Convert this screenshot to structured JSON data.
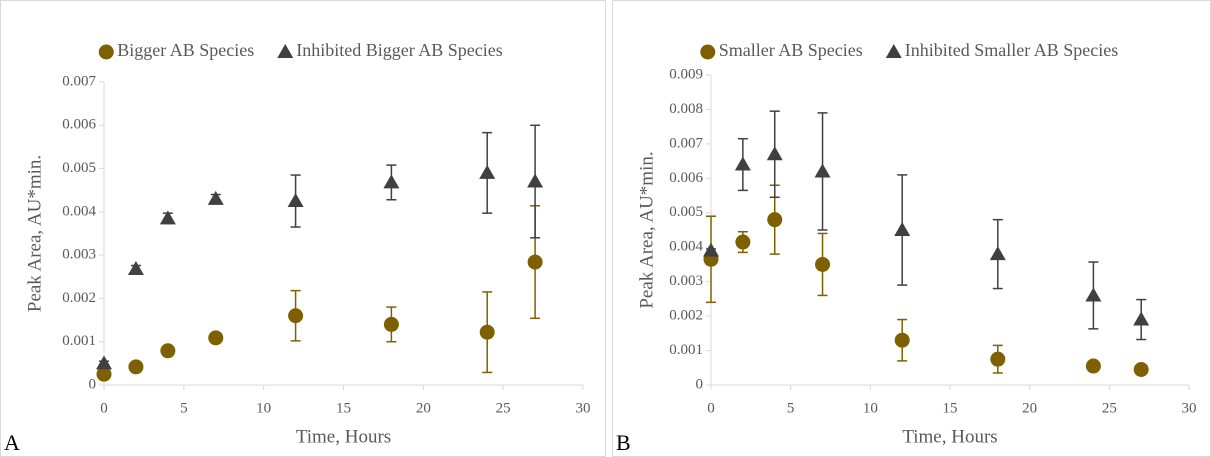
{
  "chart_data": [
    {
      "type": "scatter",
      "panel_label": "A",
      "x_label": "Time, Hours",
      "y_label": "Peak Area, AU*min.",
      "xlim": [
        0,
        30
      ],
      "xticks": [
        0,
        5,
        10,
        15,
        20,
        25,
        30
      ],
      "ylim": [
        0,
        0.007
      ],
      "yticks": [
        0,
        0.001,
        0.002,
        0.003,
        0.004,
        0.005,
        0.006,
        0.007
      ],
      "x": [
        0,
        2,
        4,
        7,
        12,
        18,
        24,
        27
      ],
      "series": [
        {
          "name": "Bigger AB Species",
          "color": "#7f6000",
          "marker": "circle",
          "values": [
            0.00025,
            0.00042,
            0.00079,
            0.00109,
            0.0016,
            0.0014,
            0.00122,
            0.00284
          ],
          "errors": [
            3e-05,
            3e-05,
            0.0001,
            4e-05,
            0.00058,
            0.0004,
            0.00093,
            0.0013
          ]
        },
        {
          "name": "Inhibited Bigger AB Species",
          "color": "#404040",
          "marker": "triangle",
          "values": [
            0.0005,
            0.00268,
            0.00385,
            0.0043,
            0.00425,
            0.00468,
            0.0049,
            0.0047
          ],
          "errors": [
            5e-05,
            8e-05,
            0.00012,
            0.0001,
            0.0006,
            0.0004,
            0.00093,
            0.0013
          ]
        }
      ]
    },
    {
      "type": "scatter",
      "panel_label": "B",
      "x_label": "Time, Hours",
      "y_label": "Peak Area, AU*min.",
      "xlim": [
        0,
        30
      ],
      "xticks": [
        0,
        5,
        10,
        15,
        20,
        25,
        30
      ],
      "ylim": [
        0,
        0.009
      ],
      "yticks": [
        0,
        0.001,
        0.002,
        0.003,
        0.004,
        0.005,
        0.006,
        0.007,
        0.008,
        0.009
      ],
      "x": [
        0,
        2,
        4,
        7,
        12,
        18,
        24,
        27
      ],
      "series": [
        {
          "name": "Smaller AB Species",
          "color": "#7f6000",
          "marker": "circle",
          "values": [
            0.00365,
            0.00415,
            0.0048,
            0.0035,
            0.0013,
            0.00075,
            0.00055,
            0.00045
          ],
          "errors": [
            0.00125,
            0.0003,
            0.001,
            0.0009,
            0.0006,
            0.0004,
            3e-05,
            3e-05
          ]
        },
        {
          "name": "Inhibited Smaller AB Species",
          "color": "#404040",
          "marker": "triangle",
          "values": [
            0.0039,
            0.0064,
            0.0067,
            0.0062,
            0.0045,
            0.0038,
            0.0026,
            0.0019
          ],
          "errors": [
            5e-05,
            0.00075,
            0.00125,
            0.0017,
            0.0016,
            0.001,
            0.00097,
            0.00058
          ]
        }
      ]
    }
  ]
}
